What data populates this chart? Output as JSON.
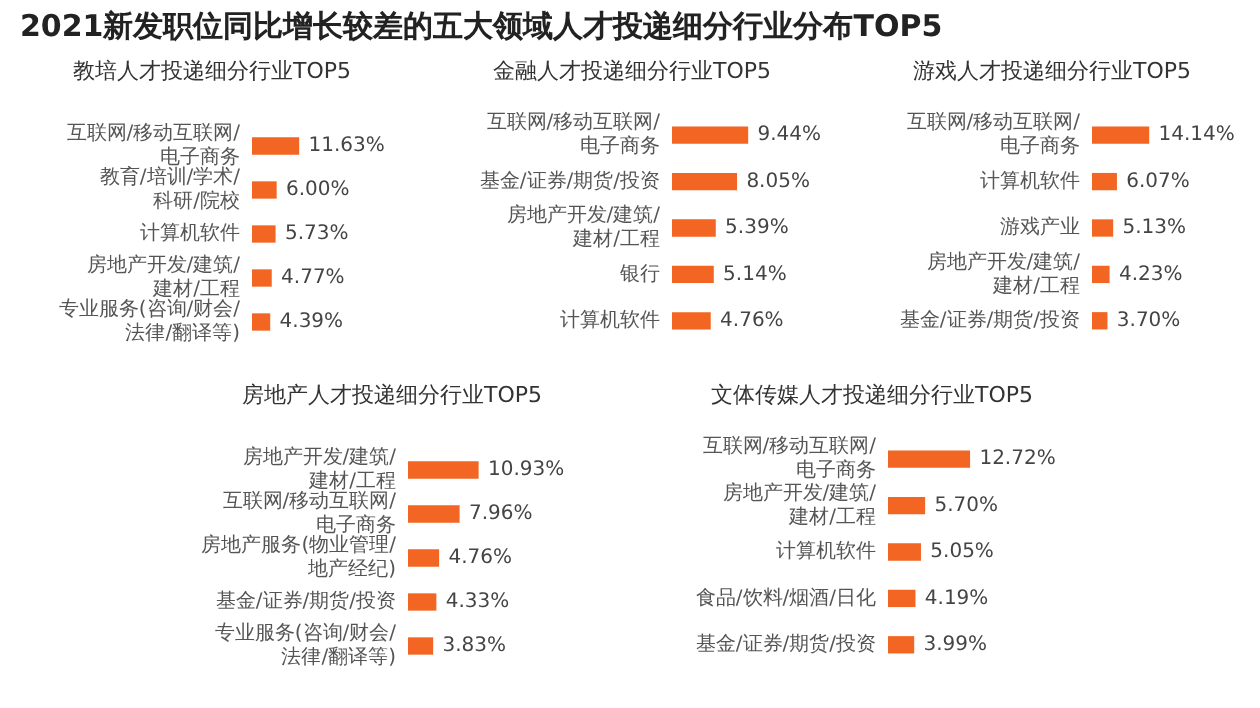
{
  "chart_data": [
    {
      "type": "other",
      "title": "2021新发职位同比增长较差的五大领域人才投递细分行业分布TOP5"
    },
    {
      "type": "bar",
      "orientation": "horizontal",
      "title": "教培人才投递细分行业TOP5",
      "categories": [
        "互联网/移动互联网/电子商务",
        "教育/培训/学术/科研/院校",
        "计算机软件",
        "房地产开发/建筑/建材/工程",
        "专业服务(咨询/财会/法律/翻译等)"
      ],
      "values": [
        11.63,
        6.0,
        5.73,
        4.77,
        4.39
      ],
      "value_labels": [
        "11.63%",
        "6.00%",
        "5.73%",
        "4.77%",
        "4.39%"
      ],
      "color": "#f26522",
      "tick_labels": "y"
    },
    {
      "type": "bar",
      "orientation": "horizontal",
      "title": "金融人才投递细分行业TOP5",
      "categories": [
        "互联网/移动互联网/电子商务",
        "基金/证券/期货/投资",
        "房地产开发/建筑/建材/工程",
        "银行",
        "计算机软件"
      ],
      "values": [
        9.44,
        8.05,
        5.39,
        5.14,
        4.76
      ],
      "value_labels": [
        "9.44%",
        "8.05%",
        "5.39%",
        "5.14%",
        "4.76%"
      ],
      "color": "#f26522",
      "tick_labels": "y"
    },
    {
      "type": "bar",
      "orientation": "horizontal",
      "title": "游戏人才投递细分行业TOP5",
      "categories": [
        "互联网/移动互联网/电子商务",
        "计算机软件",
        "游戏产业",
        "房地产开发/建筑/建材/工程",
        "基金/证券/期货/投资"
      ],
      "values": [
        14.14,
        6.07,
        5.13,
        4.23,
        3.7
      ],
      "value_labels": [
        "14.14%",
        "6.07%",
        "5.13%",
        "4.23%",
        "3.70%"
      ],
      "color": "#f26522",
      "tick_labels": "y"
    },
    {
      "type": "bar",
      "orientation": "horizontal",
      "title": "房地产人才投递细分行业TOP5",
      "categories": [
        "房地产开发/建筑/建材/工程",
        "互联网/移动互联网/电子商务",
        "房地产服务(物业管理/地产经纪)",
        "基金/证券/期货/投资",
        "专业服务(咨询/财会/法律/翻译等)"
      ],
      "values": [
        10.93,
        7.96,
        4.76,
        4.33,
        3.83
      ],
      "value_labels": [
        "10.93%",
        "7.96%",
        "4.76%",
        "4.33%",
        "3.83%"
      ],
      "color": "#f26522",
      "tick_labels": "y"
    },
    {
      "type": "bar",
      "orientation": "horizontal",
      "title": "文体传媒人才投递细分行业TOP5",
      "categories": [
        "互联网/移动互联网/电子商务",
        "房地产开发/建筑/建材/工程",
        "计算机软件",
        "食品/饮料/烟酒/日化",
        "基金/证券/期货/投资"
      ],
      "values": [
        12.72,
        5.7,
        5.05,
        4.19,
        3.99
      ],
      "value_labels": [
        "12.72%",
        "5.70%",
        "5.05%",
        "4.19%",
        "3.99%"
      ],
      "color": "#f26522",
      "tick_labels": "y"
    }
  ]
}
